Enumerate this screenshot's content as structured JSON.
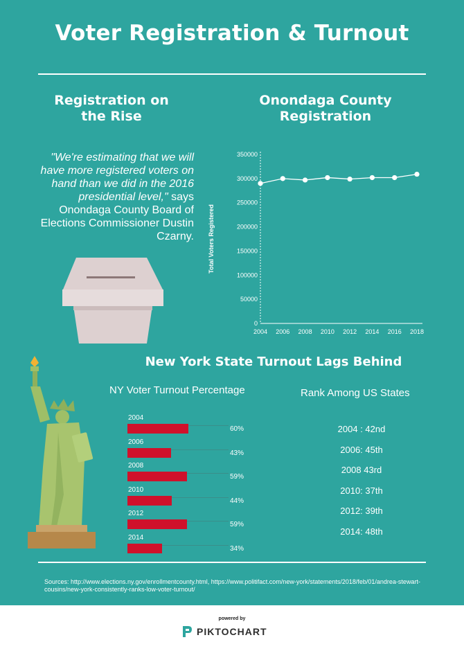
{
  "title": "Voter Registration & Turnout",
  "left_section": {
    "heading": "Registration on\nthe Rise",
    "quote_italic": "\"We're estimating that we will have more registered voters on hand than we did in the 2016 presidential level,\"",
    "quote_rest": " says Onondaga County Board of Elections Commissioner Dustin Czarny."
  },
  "right_section": {
    "heading": "Onondaga County\nRegistration"
  },
  "chart_data": [
    {
      "type": "line",
      "x": [
        2004,
        2006,
        2008,
        2010,
        2012,
        2014,
        2016,
        2018
      ],
      "series": [
        {
          "values": [
            290000,
            300000,
            297000,
            302000,
            299000,
            302000,
            302000,
            309000
          ]
        }
      ],
      "title": "",
      "xlabel": "",
      "ylabel": "Total Voters Registered",
      "ylim": [
        0,
        350000
      ],
      "yticks": [
        "0",
        "50000",
        "100000",
        "150000",
        "200000",
        "250000",
        "300000",
        "350000"
      ],
      "xticks": [
        "2004",
        "2006",
        "2008",
        "2010",
        "2012",
        "2014",
        "2016",
        "2018"
      ],
      "grid": false,
      "color": "#ffffff"
    },
    {
      "type": "bar",
      "title": "NY Voter Turnout Percentage",
      "categories": [
        "2004",
        "2006",
        "2008",
        "2010",
        "2012",
        "2014"
      ],
      "values": [
        60,
        43,
        59,
        44,
        59,
        34
      ],
      "labels": [
        "60%",
        "43%",
        "59%",
        "44%",
        "59%",
        "34%"
      ],
      "xlim": [
        0,
        100
      ],
      "color": "#d0112b"
    }
  ],
  "turnout_section": {
    "heading": "New York State Turnout Lags Behind",
    "rank_title": "Rank Among US States",
    "ranks": [
      "2004 : 42nd",
      "2006: 45th",
      "2008 43rd",
      "2010: 37th",
      "2012: 39th",
      "2014: 48th"
    ]
  },
  "sources": "Sources: http://www.elections.ny.gov/enrollmentcounty.html, https://www.politifact.com/new-york/statements/2018/feb/01/andrea-stewart-cousins/new-york-consistently-ranks-low-voter-turnout/",
  "footer": {
    "powered": "powered by",
    "brand": "PIKTOCHART"
  },
  "icons": {
    "ballot": "ballot-box-icon",
    "statue": "statue-of-liberty-icon",
    "brand": "piktochart-logo-icon"
  },
  "colors": {
    "background": "#2ea59f",
    "bar": "#d0112b",
    "text": "#ffffff"
  }
}
